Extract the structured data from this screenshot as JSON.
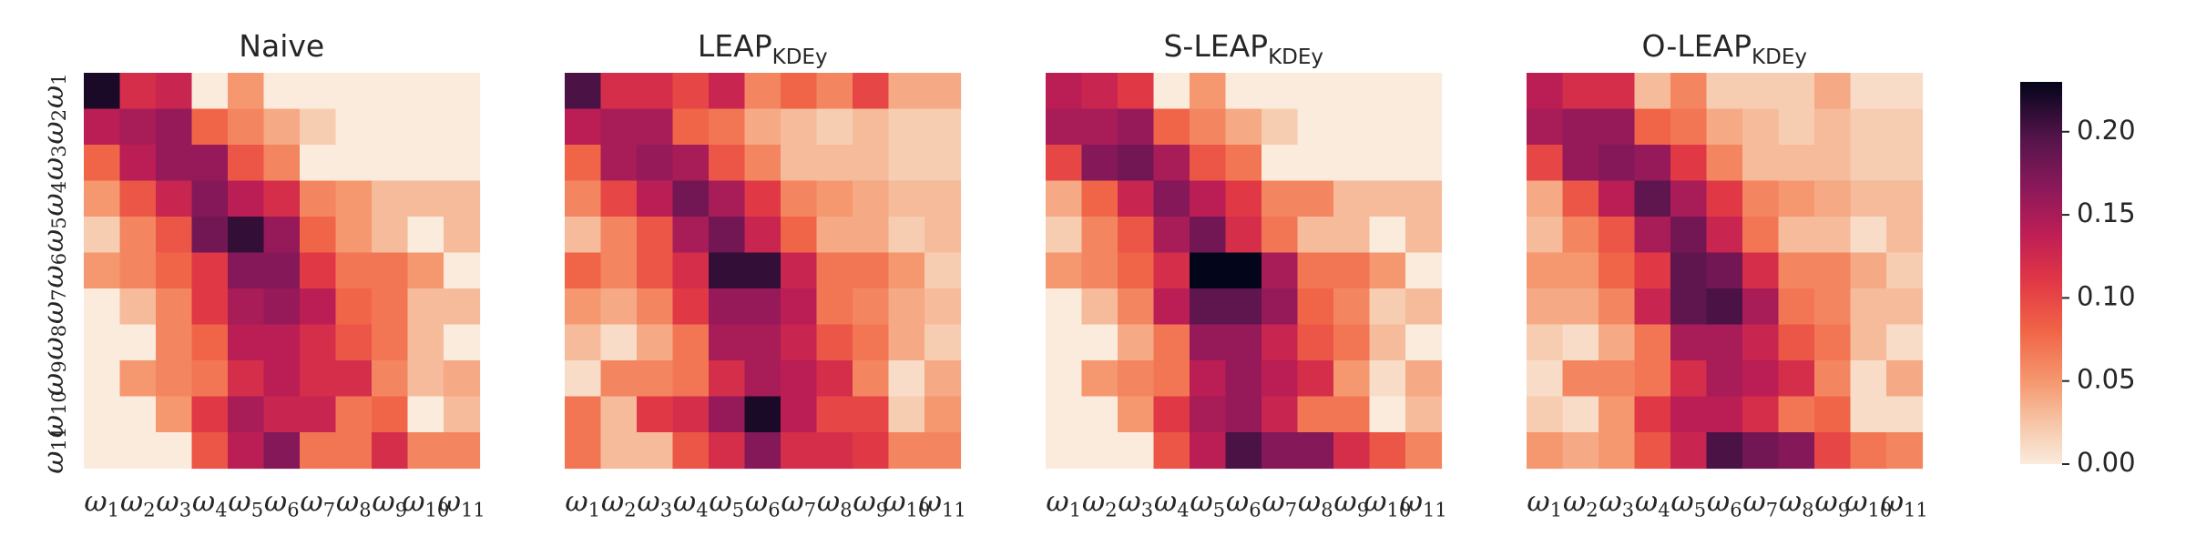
{
  "chart_data": {
    "type": "heatmap",
    "colormap": "rocket_r",
    "color_range": [
      0,
      0.23
    ],
    "row_labels": [
      {
        "base": "ω",
        "sub": "1"
      },
      {
        "base": "ω",
        "sub": "2"
      },
      {
        "base": "ω",
        "sub": "3"
      },
      {
        "base": "ω",
        "sub": "4"
      },
      {
        "base": "ω",
        "sub": "5"
      },
      {
        "base": "ω",
        "sub": "6"
      },
      {
        "base": "ω",
        "sub": "7"
      },
      {
        "base": "ω",
        "sub": "8"
      },
      {
        "base": "ω",
        "sub": "9"
      },
      {
        "base": "ω",
        "sub": "10"
      },
      {
        "base": "ω",
        "sub": "11"
      }
    ],
    "col_labels": [
      {
        "base": "ω",
        "sub": "1"
      },
      {
        "base": "ω",
        "sub": "2"
      },
      {
        "base": "ω",
        "sub": "3"
      },
      {
        "base": "ω",
        "sub": "4"
      },
      {
        "base": "ω",
        "sub": "5"
      },
      {
        "base": "ω",
        "sub": "6"
      },
      {
        "base": "ω",
        "sub": "7"
      },
      {
        "base": "ω",
        "sub": "8"
      },
      {
        "base": "ω",
        "sub": "9"
      },
      {
        "base": "ω",
        "sub": "10"
      },
      {
        "base": "ω",
        "sub": "11"
      }
    ],
    "colorbar": {
      "ticks": [
        0.0,
        0.05,
        0.1,
        0.15,
        0.2
      ],
      "tick_labels": [
        "0.00",
        "0.05",
        "0.10",
        "0.15",
        "0.20"
      ]
    },
    "panels": [
      {
        "title": "Naive",
        "title_sub": "",
        "matrix": [
          [
            0.22,
            0.12,
            0.13,
            0.0,
            0.05,
            0.0,
            0.0,
            0.0,
            0.0,
            0.0,
            0.0
          ],
          [
            0.14,
            0.15,
            0.16,
            0.08,
            0.06,
            0.04,
            0.02,
            0.0,
            0.0,
            0.0,
            0.0
          ],
          [
            0.08,
            0.14,
            0.16,
            0.16,
            0.09,
            0.06,
            0.0,
            0.0,
            0.0,
            0.0,
            0.0
          ],
          [
            0.05,
            0.09,
            0.13,
            0.17,
            0.14,
            0.12,
            0.06,
            0.05,
            0.03,
            0.03,
            0.03
          ],
          [
            0.02,
            0.06,
            0.09,
            0.18,
            0.21,
            0.16,
            0.08,
            0.05,
            0.03,
            0.0,
            0.03
          ],
          [
            0.05,
            0.06,
            0.08,
            0.11,
            0.17,
            0.17,
            0.11,
            0.07,
            0.07,
            0.05,
            0.0
          ],
          [
            0.0,
            0.03,
            0.06,
            0.11,
            0.15,
            0.16,
            0.14,
            0.08,
            0.07,
            0.03,
            0.03
          ],
          [
            0.0,
            0.0,
            0.06,
            0.08,
            0.14,
            0.14,
            0.12,
            0.09,
            0.07,
            0.03,
            0.0
          ],
          [
            0.0,
            0.05,
            0.06,
            0.07,
            0.12,
            0.14,
            0.12,
            0.12,
            0.06,
            0.03,
            0.04
          ],
          [
            0.0,
            0.0,
            0.05,
            0.11,
            0.15,
            0.13,
            0.13,
            0.07,
            0.08,
            0.0,
            0.03
          ],
          [
            0.0,
            0.0,
            0.0,
            0.09,
            0.14,
            0.17,
            0.07,
            0.07,
            0.12,
            0.06,
            0.06
          ]
        ]
      },
      {
        "title": "LEAP",
        "title_sub": "KDEy",
        "matrix": [
          [
            0.2,
            0.12,
            0.12,
            0.1,
            0.13,
            0.06,
            0.08,
            0.06,
            0.1,
            0.04,
            0.04
          ],
          [
            0.14,
            0.15,
            0.15,
            0.08,
            0.07,
            0.04,
            0.03,
            0.02,
            0.03,
            0.02,
            0.02
          ],
          [
            0.08,
            0.15,
            0.16,
            0.15,
            0.09,
            0.06,
            0.03,
            0.03,
            0.03,
            0.02,
            0.02
          ],
          [
            0.06,
            0.1,
            0.14,
            0.18,
            0.15,
            0.11,
            0.06,
            0.05,
            0.04,
            0.03,
            0.03
          ],
          [
            0.03,
            0.06,
            0.09,
            0.15,
            0.18,
            0.13,
            0.08,
            0.04,
            0.04,
            0.02,
            0.03
          ],
          [
            0.08,
            0.06,
            0.09,
            0.12,
            0.21,
            0.21,
            0.13,
            0.07,
            0.07,
            0.05,
            0.02
          ],
          [
            0.05,
            0.04,
            0.06,
            0.11,
            0.16,
            0.16,
            0.14,
            0.07,
            0.06,
            0.04,
            0.03
          ],
          [
            0.03,
            0.01,
            0.04,
            0.07,
            0.15,
            0.15,
            0.13,
            0.09,
            0.07,
            0.04,
            0.02
          ],
          [
            0.01,
            0.06,
            0.06,
            0.07,
            0.12,
            0.15,
            0.14,
            0.12,
            0.06,
            0.01,
            0.04
          ],
          [
            0.07,
            0.03,
            0.11,
            0.12,
            0.16,
            0.22,
            0.14,
            0.1,
            0.1,
            0.02,
            0.05
          ],
          [
            0.07,
            0.03,
            0.03,
            0.09,
            0.12,
            0.17,
            0.12,
            0.12,
            0.11,
            0.06,
            0.06
          ]
        ]
      },
      {
        "title": "S-LEAP",
        "title_sub": "KDEy",
        "matrix": [
          [
            0.14,
            0.13,
            0.11,
            0.0,
            0.05,
            0.0,
            0.0,
            0.0,
            0.0,
            0.0,
            0.0
          ],
          [
            0.15,
            0.15,
            0.16,
            0.08,
            0.06,
            0.04,
            0.02,
            0.0,
            0.0,
            0.0,
            0.0
          ],
          [
            0.1,
            0.17,
            0.18,
            0.15,
            0.09,
            0.07,
            0.0,
            0.0,
            0.0,
            0.0,
            0.0
          ],
          [
            0.04,
            0.08,
            0.13,
            0.17,
            0.14,
            0.11,
            0.06,
            0.06,
            0.03,
            0.03,
            0.03
          ],
          [
            0.02,
            0.06,
            0.09,
            0.15,
            0.18,
            0.12,
            0.07,
            0.03,
            0.03,
            0.0,
            0.03
          ],
          [
            0.05,
            0.06,
            0.08,
            0.12,
            0.23,
            0.23,
            0.15,
            0.07,
            0.07,
            0.05,
            0.0
          ],
          [
            0.0,
            0.03,
            0.06,
            0.14,
            0.19,
            0.19,
            0.16,
            0.08,
            0.06,
            0.02,
            0.03
          ],
          [
            0.0,
            0.0,
            0.04,
            0.07,
            0.16,
            0.16,
            0.13,
            0.09,
            0.07,
            0.03,
            0.0
          ],
          [
            0.0,
            0.05,
            0.06,
            0.07,
            0.14,
            0.16,
            0.14,
            0.12,
            0.05,
            0.01,
            0.04
          ],
          [
            0.0,
            0.0,
            0.05,
            0.11,
            0.15,
            0.16,
            0.13,
            0.07,
            0.07,
            0.0,
            0.03
          ],
          [
            0.0,
            0.0,
            0.0,
            0.09,
            0.14,
            0.2,
            0.17,
            0.17,
            0.12,
            0.09,
            0.06
          ]
        ]
      },
      {
        "title": "O-LEAP",
        "title_sub": "KDEy",
        "matrix": [
          [
            0.14,
            0.12,
            0.12,
            0.03,
            0.06,
            0.02,
            0.02,
            0.02,
            0.04,
            0.01,
            0.01
          ],
          [
            0.15,
            0.16,
            0.16,
            0.08,
            0.07,
            0.04,
            0.03,
            0.02,
            0.03,
            0.02,
            0.02
          ],
          [
            0.1,
            0.16,
            0.17,
            0.16,
            0.11,
            0.06,
            0.03,
            0.03,
            0.03,
            0.02,
            0.02
          ],
          [
            0.04,
            0.09,
            0.14,
            0.19,
            0.15,
            0.11,
            0.06,
            0.05,
            0.04,
            0.03,
            0.03
          ],
          [
            0.03,
            0.06,
            0.09,
            0.15,
            0.18,
            0.13,
            0.07,
            0.03,
            0.03,
            0.01,
            0.03
          ],
          [
            0.05,
            0.05,
            0.08,
            0.11,
            0.19,
            0.18,
            0.12,
            0.06,
            0.06,
            0.04,
            0.02
          ],
          [
            0.04,
            0.04,
            0.06,
            0.13,
            0.19,
            0.2,
            0.15,
            0.07,
            0.06,
            0.03,
            0.03
          ],
          [
            0.02,
            0.01,
            0.04,
            0.07,
            0.15,
            0.15,
            0.13,
            0.09,
            0.07,
            0.03,
            0.01
          ],
          [
            0.01,
            0.06,
            0.06,
            0.07,
            0.12,
            0.15,
            0.14,
            0.12,
            0.06,
            0.01,
            0.04
          ],
          [
            0.02,
            0.01,
            0.05,
            0.11,
            0.14,
            0.14,
            0.12,
            0.07,
            0.08,
            0.01,
            0.01
          ],
          [
            0.05,
            0.04,
            0.05,
            0.09,
            0.13,
            0.2,
            0.18,
            0.17,
            0.1,
            0.07,
            0.06
          ]
        ]
      }
    ]
  }
}
